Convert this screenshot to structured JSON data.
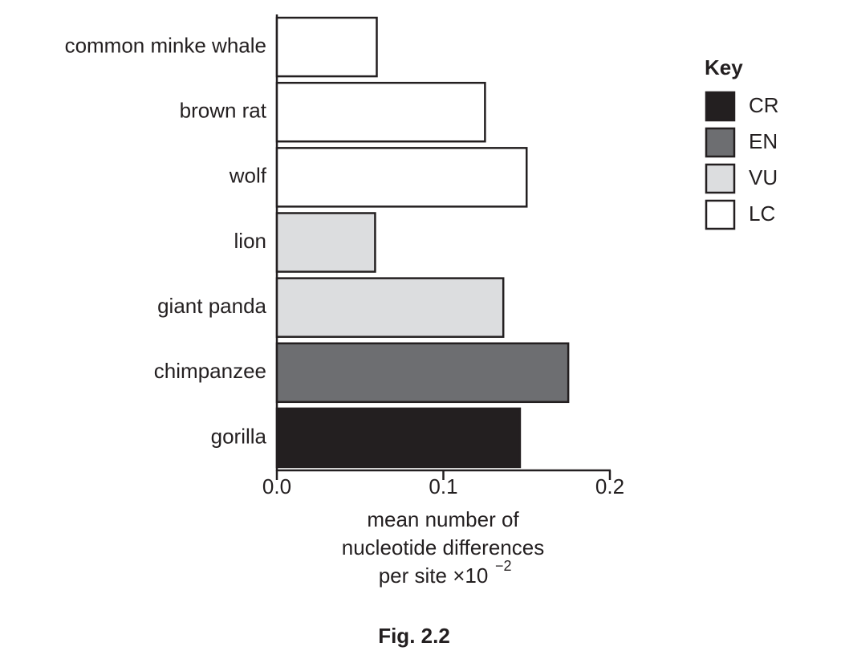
{
  "chart_data": {
    "type": "hbar",
    "categories": [
      "common minke whale",
      "brown rat",
      "wolf",
      "lion",
      "giant panda",
      "chimpanzee",
      "gorilla"
    ],
    "series": [
      {
        "name": "CR",
        "color": "#231f20",
        "values": [
          null,
          null,
          null,
          null,
          null,
          null,
          0.146
        ]
      },
      {
        "name": "EN",
        "color": "#6d6e71",
        "values": [
          null,
          null,
          null,
          null,
          null,
          0.175,
          null
        ]
      },
      {
        "name": "VU",
        "color": "#dcdddf",
        "values": [
          null,
          null,
          null,
          0.059,
          0.136,
          null,
          null
        ]
      },
      {
        "name": "LC",
        "color": "#ffffff",
        "values": [
          0.06,
          0.125,
          0.15,
          null,
          null,
          null,
          null
        ]
      }
    ],
    "xlim": [
      0,
      0.2
    ],
    "xticks": [
      {
        "value": 0,
        "label": "0.0"
      },
      0.1,
      0.2
    ],
    "x_label": [
      "mean number of",
      "nucleotide differences",
      "per site ×10"
    ],
    "x_label_exponent": "−2",
    "legend_title": "Key",
    "legend_position": "right",
    "caption": "Fig. 2.2"
  }
}
